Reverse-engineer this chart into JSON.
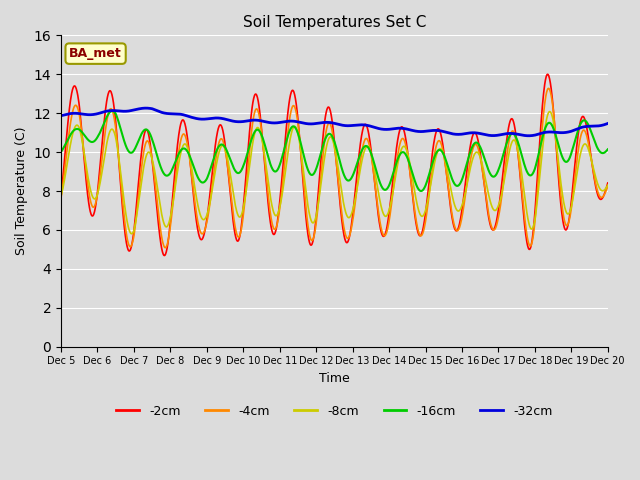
{
  "title": "Soil Temperatures Set C",
  "xlabel": "Time",
  "ylabel": "Soil Temperature (C)",
  "ylim": [
    0,
    16
  ],
  "yticks": [
    0,
    2,
    4,
    6,
    8,
    10,
    12,
    14,
    16
  ],
  "background_color": "#dcdcdc",
  "annotation_text": "BA_met",
  "annotation_color": "#8B0000",
  "annotation_bg": "#ffffcc",
  "legend_labels": [
    "-2cm",
    "-4cm",
    "-8cm",
    "-16cm",
    "-32cm"
  ],
  "legend_colors": [
    "#ff0000",
    "#ff8800",
    "#cccc00",
    "#00cc00",
    "#0000dd"
  ],
  "line_widths": [
    1.2,
    1.2,
    1.2,
    1.5,
    2.0
  ],
  "xtick_labels": [
    "Dec 5",
    "Dec 6",
    "Dec 7",
    "Dec 8",
    "Dec 9",
    "Dec 10",
    "Dec 11",
    "Dec 12",
    "Dec 13",
    "Dec 14",
    "Dec 15",
    "Dec 16",
    "Dec 17",
    "Dec 18",
    "Dec 19",
    "Dec 20"
  ]
}
